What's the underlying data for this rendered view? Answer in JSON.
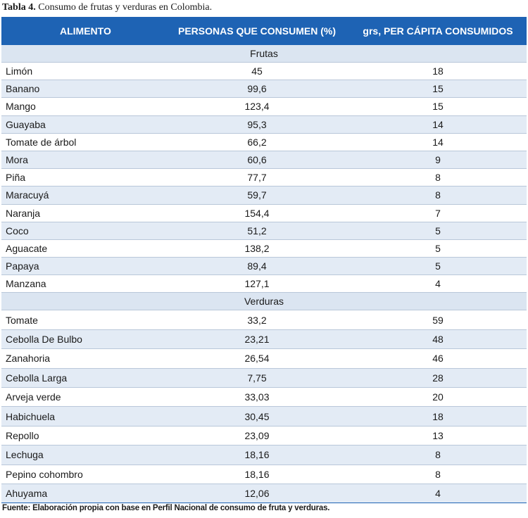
{
  "caption": {
    "label": "Tabla 4.",
    "text": "Consumo de frutas y verduras en Colombia."
  },
  "columns": [
    "ALIMENTO",
    "PERSONAS QUE CONSUMEN (%)",
    "grs, PER CÁPITA CONSUMIDOS"
  ],
  "sections": [
    {
      "title": "Frutas",
      "rows": [
        [
          "Limón",
          "45",
          "18"
        ],
        [
          "Banano",
          "99,6",
          "15"
        ],
        [
          "Mango",
          "123,4",
          "15"
        ],
        [
          "Guayaba",
          "95,3",
          "14"
        ],
        [
          "Tomate de árbol",
          "66,2",
          "14"
        ],
        [
          "Mora",
          "60,6",
          "9"
        ],
        [
          "Piña",
          "77,7",
          "8"
        ],
        [
          "Maracuyá",
          "59,7",
          "8"
        ],
        [
          "Naranja",
          "154,4",
          "7"
        ],
        [
          "Coco",
          "51,2",
          "5"
        ],
        [
          "Aguacate",
          "138,2",
          "5"
        ],
        [
          "Papaya",
          "89,4",
          "5"
        ],
        [
          "Manzana",
          "127,1",
          "4"
        ]
      ]
    },
    {
      "title": "Verduras",
      "rows": [
        [
          "Tomate",
          "33,2",
          "59"
        ],
        [
          "Cebolla De Bulbo",
          "23,21",
          "48"
        ],
        [
          "Zanahoria",
          "26,54",
          "46"
        ],
        [
          "Cebolla Larga",
          "7,75",
          "28"
        ],
        [
          "Arveja verde",
          "33,03",
          "20"
        ],
        [
          "Habichuela",
          "30,45",
          "18"
        ],
        [
          "Repollo",
          "23,09",
          "13"
        ],
        [
          "Lechuga",
          "18,16",
          "8"
        ],
        [
          "Pepino cohombro",
          "18,16",
          "8"
        ],
        [
          "Ahuyama",
          "12,06",
          "4"
        ]
      ]
    }
  ],
  "source": "Fuente: Elaboración propia con base en Perfil Nacional de consumo de fruta y verduras."
}
